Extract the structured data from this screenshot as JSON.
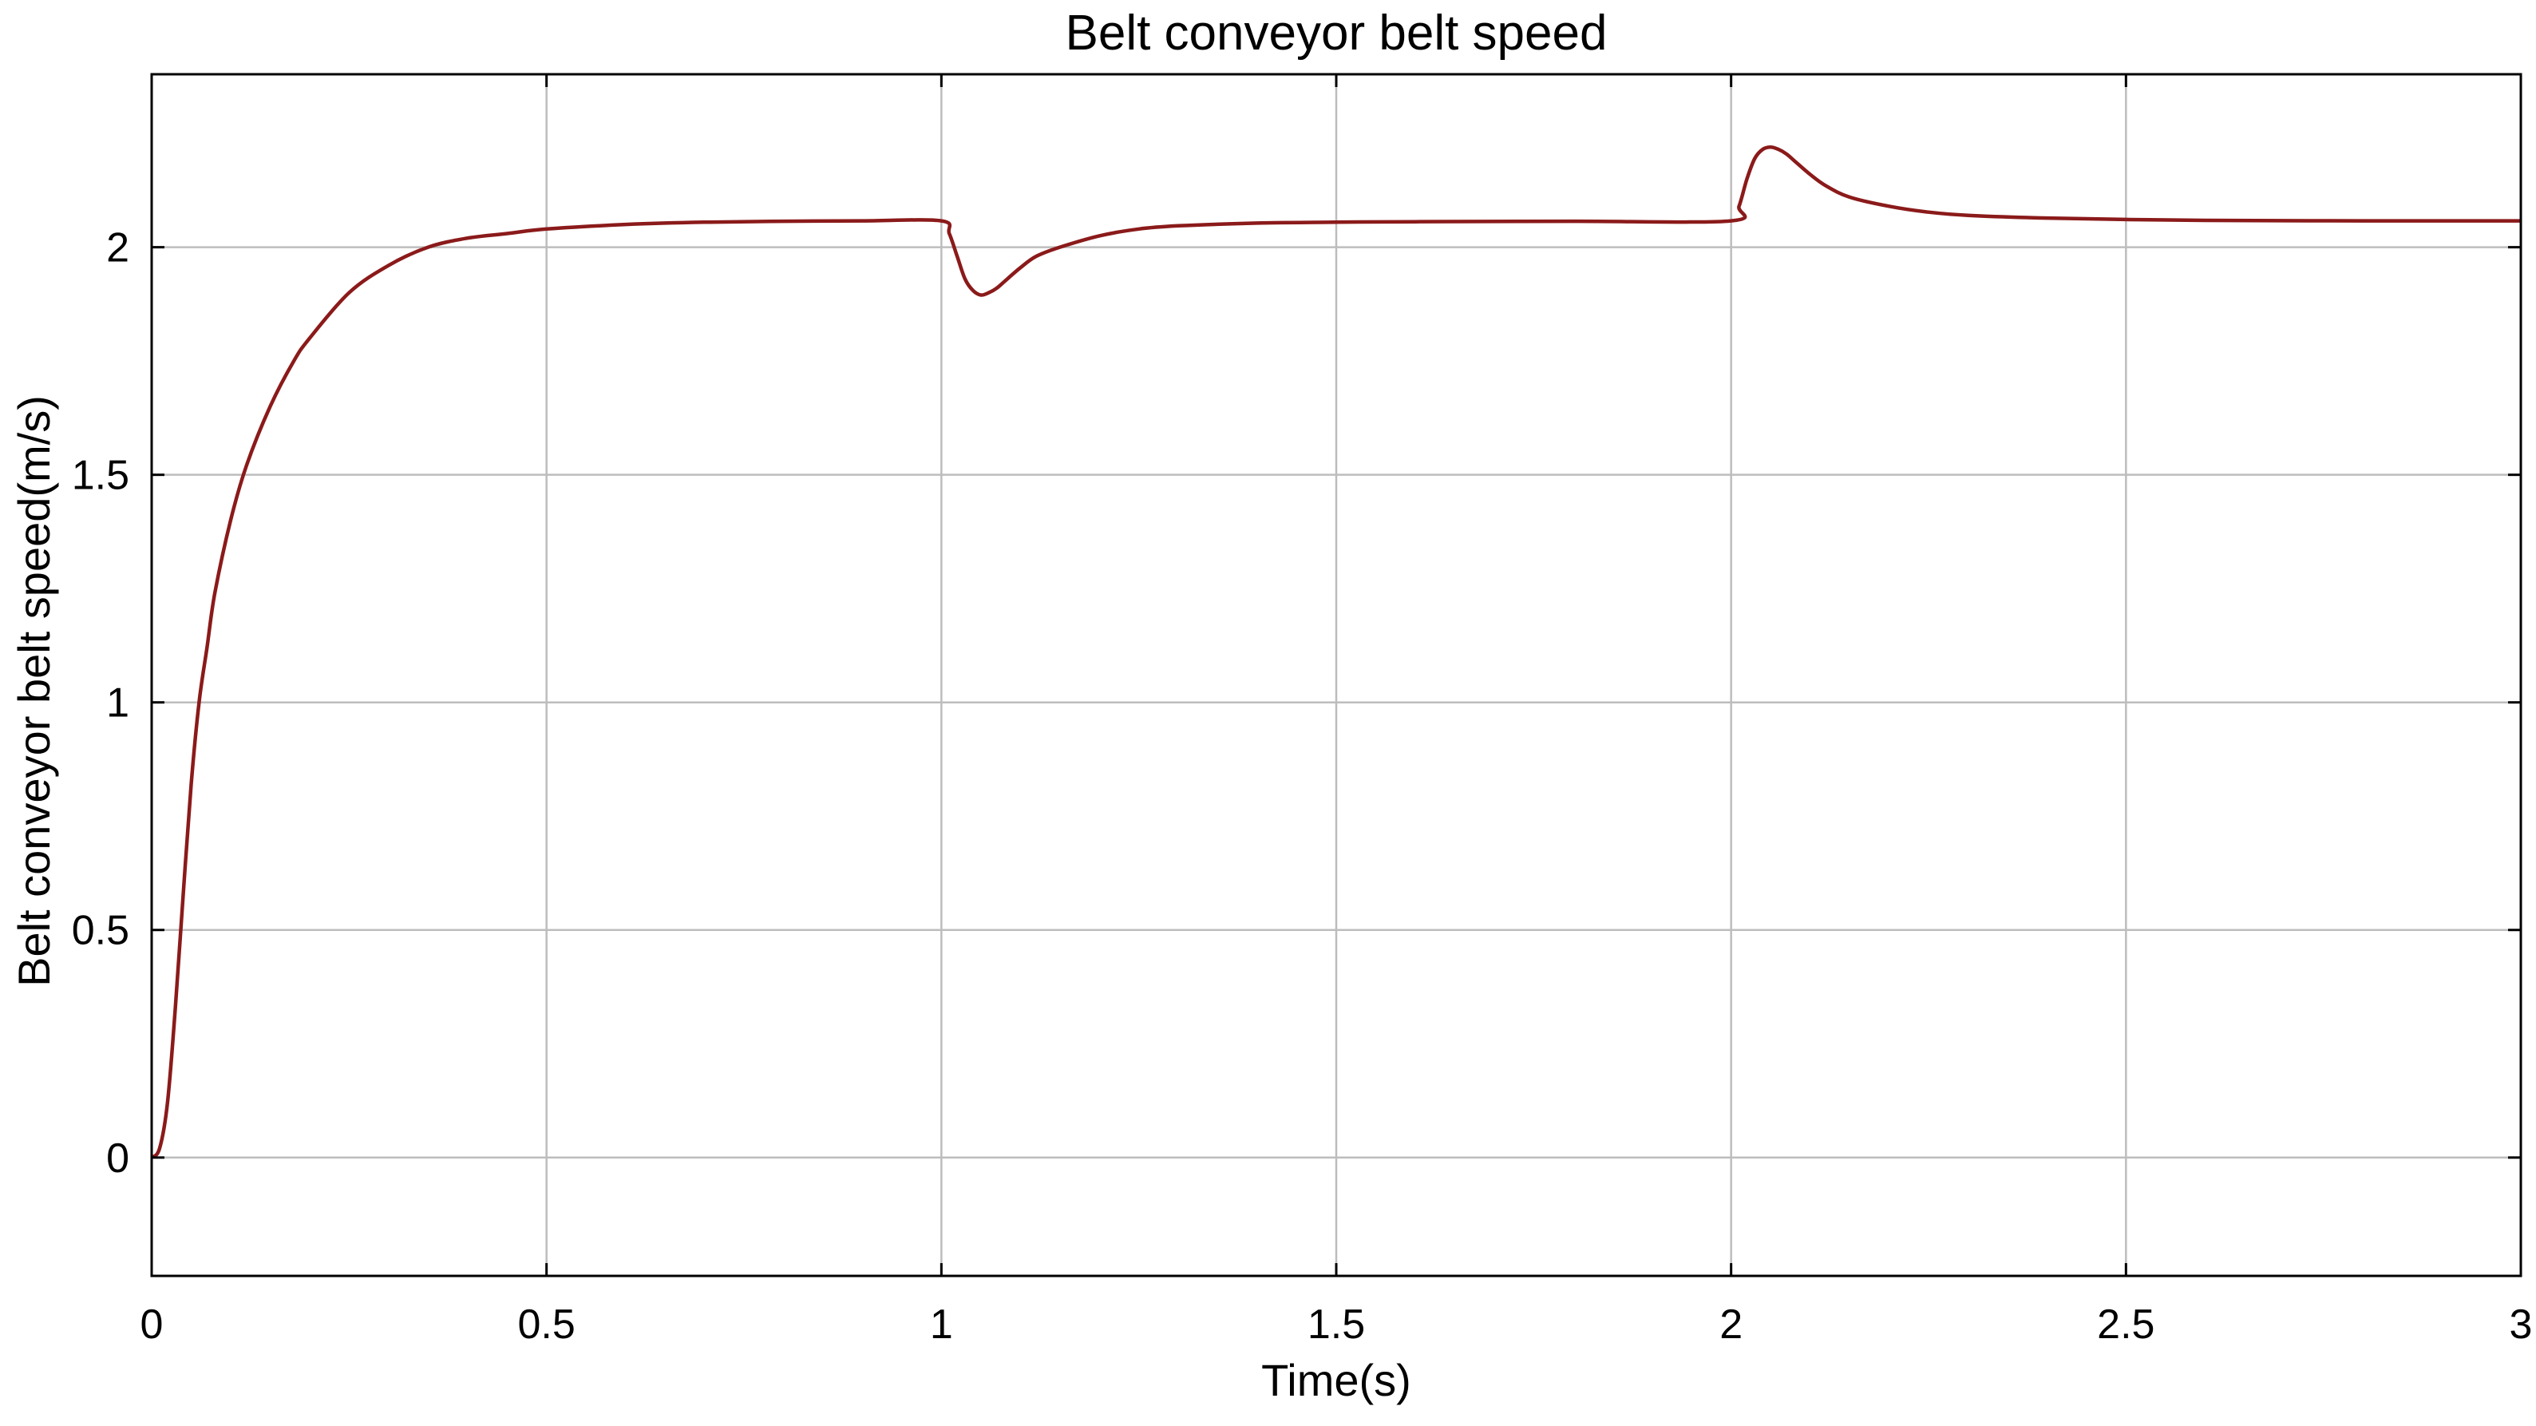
{
  "chart_data": {
    "type": "line",
    "title": "Belt conveyor belt speed",
    "xlabel": "Time(s)",
    "ylabel": "Belt conveyor belt speed(m/s)",
    "xlim": [
      0,
      3
    ],
    "ylim": [
      -0.26,
      2.38
    ],
    "x_ticks": [
      0,
      0.5,
      1,
      1.5,
      2,
      2.5,
      3
    ],
    "x_tick_labels": [
      "0",
      "0.5",
      "1",
      "1.5",
      "2",
      "2.5",
      "3"
    ],
    "y_ticks": [
      0,
      0.5,
      1,
      1.5,
      2
    ],
    "y_tick_labels": [
      "0",
      "0.5",
      "1",
      "1.5",
      "2"
    ],
    "grid": true,
    "series": [
      {
        "color": "#8b1a1a",
        "x": [
          0,
          0.01,
          0.02,
          0.03,
          0.04,
          0.05,
          0.06,
          0.07,
          0.08,
          0.1,
          0.12,
          0.15,
          0.18,
          0.2,
          0.25,
          0.3,
          0.35,
          0.4,
          0.45,
          0.5,
          0.6,
          0.7,
          0.8,
          0.9,
          1.0,
          1.01,
          1.02,
          1.03,
          1.04,
          1.05,
          1.06,
          1.07,
          1.08,
          1.1,
          1.12,
          1.15,
          1.2,
          1.25,
          1.3,
          1.4,
          1.5,
          1.6,
          1.8,
          2.0,
          2.01,
          2.02,
          2.03,
          2.04,
          2.05,
          2.06,
          2.07,
          2.08,
          2.1,
          2.12,
          2.15,
          2.2,
          2.25,
          2.3,
          2.4,
          2.5,
          2.6,
          2.8,
          3.0
        ],
        "y": [
          0,
          0.02,
          0.12,
          0.33,
          0.58,
          0.82,
          1.0,
          1.12,
          1.24,
          1.4,
          1.52,
          1.65,
          1.75,
          1.8,
          1.9,
          1.96,
          2.0,
          2.02,
          2.03,
          2.04,
          2.05,
          2.055,
          2.057,
          2.058,
          2.058,
          2.03,
          1.98,
          1.93,
          1.905,
          1.895,
          1.9,
          1.91,
          1.925,
          1.955,
          1.98,
          2.0,
          2.025,
          2.04,
          2.047,
          2.053,
          2.055,
          2.056,
          2.057,
          2.058,
          2.09,
          2.15,
          2.195,
          2.215,
          2.22,
          2.215,
          2.205,
          2.19,
          2.16,
          2.135,
          2.11,
          2.09,
          2.077,
          2.07,
          2.064,
          2.061,
          2.059,
          2.058,
          2.058
        ]
      }
    ]
  }
}
